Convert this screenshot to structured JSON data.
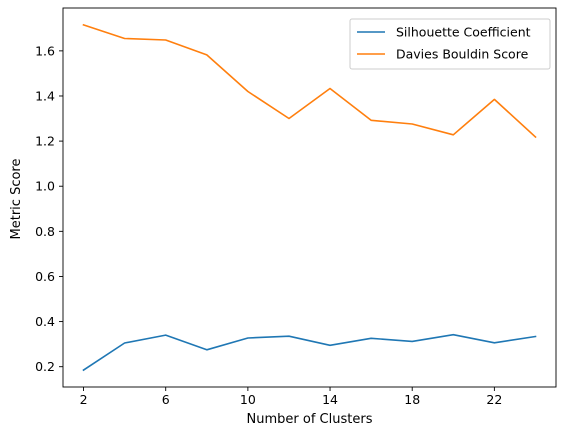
{
  "chart_data": {
    "type": "line",
    "xlabel": "Number of Clusters",
    "ylabel": "Metric Score",
    "xlim": [
      1.0,
      25.0
    ],
    "ylim": [
      0.11,
      1.79
    ],
    "xticks": [
      2,
      6,
      10,
      14,
      18,
      22
    ],
    "yticks": [
      0.2,
      0.4,
      0.6,
      0.8,
      1.0,
      1.2,
      1.4,
      1.6
    ],
    "ytick_labels": [
      "0.2",
      "0.4",
      "0.6",
      "0.8",
      "1.0",
      "1.2",
      "1.4",
      "1.6"
    ],
    "grid": false,
    "legend_position": "top-right",
    "x": [
      2,
      4,
      6,
      8,
      10,
      12,
      14,
      16,
      18,
      20,
      22,
      24
    ],
    "series": [
      {
        "name": "Silhouette Coefficient",
        "color": "#1f77b4",
        "values": [
          0.185,
          0.305,
          0.34,
          0.275,
          0.327,
          0.335,
          0.295,
          0.326,
          0.312,
          0.342,
          0.306,
          0.334
        ]
      },
      {
        "name": "Davies Bouldin Score",
        "color": "#ff7f0e",
        "values": [
          1.715,
          1.655,
          1.648,
          1.582,
          1.42,
          1.3,
          1.433,
          1.292,
          1.276,
          1.228,
          1.385,
          1.218
        ]
      }
    ]
  }
}
